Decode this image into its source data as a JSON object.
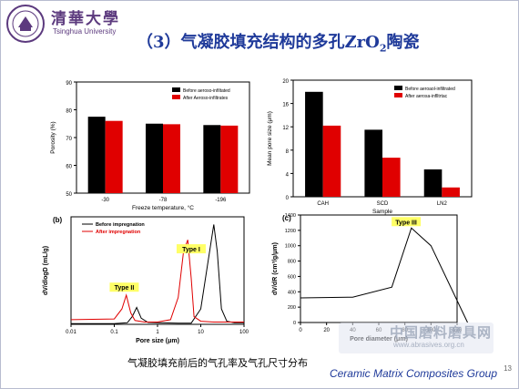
{
  "header": {
    "brand_cn": "清華大學",
    "brand_en": "Tsinghua University",
    "title_prefix": "（3）气凝胶填充结构的多孔ZrO",
    "title_sub": "2",
    "title_suffix": "陶瓷"
  },
  "colors": {
    "title": "#1f3a9a",
    "brand": "#5c3a7e",
    "series_black": "#000000",
    "series_red": "#e00000",
    "tag_bg": "#ffff66"
  },
  "chart_data": [
    {
      "type": "bar",
      "categories": [
        "-30",
        "-78",
        "-196"
      ],
      "series": [
        {
          "name": "Before aeroso-infiltated",
          "values": [
            77.5,
            75.0,
            74.5
          ]
        },
        {
          "name": "After Aeroso-infiltrates",
          "values": [
            76.0,
            74.8,
            74.3
          ]
        }
      ],
      "xlabel": "Freeze temperature, °C",
      "ylabel": "Porosity (%)",
      "ylim": [
        50,
        90
      ],
      "yticks": [
        "50",
        "60",
        "70",
        "80",
        "90"
      ],
      "legend": "top-right"
    },
    {
      "type": "bar",
      "categories": [
        "CAH",
        "SCD",
        "LN2"
      ],
      "series": [
        {
          "name": "Before aeroaol-infiltrated",
          "values": [
            18.0,
            11.5,
            4.7
          ]
        },
        {
          "name": "After aerosa-inflltrtac",
          "values": [
            12.2,
            6.7,
            1.6
          ]
        }
      ],
      "xlabel": "Sample",
      "ylabel": "Mean pore size (μm)",
      "ylim": [
        0,
        20
      ],
      "yticks": [
        "0",
        "4",
        "8",
        "12",
        "16",
        "20"
      ],
      "legend": "top-right"
    },
    {
      "type": "line",
      "panel": "(b)",
      "series": [
        {
          "name": "Before impregnation",
          "x": [
            0.01,
            0.1,
            0.2,
            0.26,
            0.33,
            0.42,
            0.6,
            1,
            3,
            6,
            10,
            15,
            20,
            24,
            30,
            40,
            60,
            100
          ],
          "y": [
            0.1,
            0.1,
            0.2,
            1.0,
            2.2,
            0.8,
            0.25,
            0.2,
            0.15,
            0.15,
            2.0,
            8.5,
            13.0,
            9.5,
            2.0,
            0.4,
            0.2,
            0.2
          ]
        },
        {
          "name": "After impregnation",
          "x": [
            0.01,
            0.1,
            0.15,
            0.19,
            0.24,
            0.3,
            0.5,
            1,
            2,
            3,
            4,
            5,
            6,
            7,
            10,
            20,
            100
          ],
          "y": [
            0.6,
            0.7,
            2.0,
            3.8,
            1.5,
            0.5,
            0.3,
            0.3,
            0.6,
            3.5,
            9.5,
            11.0,
            6.0,
            1.0,
            0.4,
            0.3,
            0.3
          ]
        }
      ],
      "xlabel": "Pore size (μm)",
      "ylabel": "dV/dlogD (mL/g)",
      "xscale": "log",
      "xlim": [
        0.01,
        100
      ],
      "xticks": [
        "0.01",
        "0.1",
        "1",
        "10",
        "100"
      ],
      "ylim": [
        0,
        14
      ],
      "annotations": [
        "Type I",
        "Type II"
      ],
      "legend": "top-left"
    },
    {
      "type": "line",
      "panel": "(c)",
      "series": [
        {
          "name": "",
          "x": [
            0,
            40,
            70,
            85,
            100,
            128
          ],
          "y": [
            320,
            330,
            460,
            1230,
            1000,
            0
          ]
        }
      ],
      "xlabel": "Pore diameter (μm)",
      "ylabel": "dV/dR (cm³/g/μm)",
      "xlim": [
        0,
        120
      ],
      "xticks": [
        "0",
        "20",
        "40",
        "60",
        "80",
        "100",
        "120"
      ],
      "ylim": [
        0,
        1400
      ],
      "yticks": [
        "0",
        "200",
        "400",
        "600",
        "800",
        "1000",
        "1200",
        "1400"
      ],
      "annotations": [
        "Type III"
      ],
      "grid": false
    }
  ],
  "caption": "气凝胶填充前后的气孔率及气孔尺寸分布",
  "footer": "Ceramic Matrix Composites Group",
  "page_number": "13",
  "watermark": {
    "main": "中国磨料磨具网",
    "url": "www.abrasives.org.cn"
  }
}
